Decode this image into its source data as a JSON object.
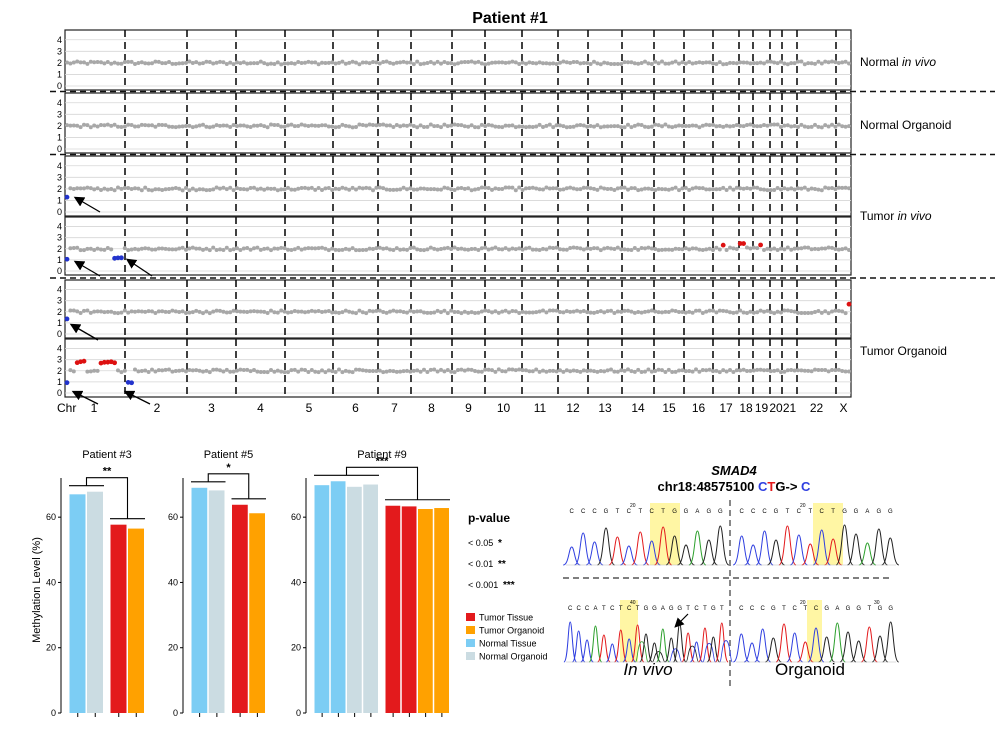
{
  "cnv": {
    "title": "Patient #1",
    "x_axis_label": "Chr",
    "chromosomes": [
      "1",
      "2",
      "3",
      "4",
      "5",
      "6",
      "7",
      "8",
      "9",
      "10",
      "11",
      "12",
      "13",
      "14",
      "15",
      "16",
      "17",
      "18",
      "19",
      "20",
      "21",
      "22",
      "X"
    ],
    "y_ticks": [
      0,
      1,
      2,
      3,
      4
    ],
    "sample_labels": [
      {
        "pre": "Normal ",
        "ital": "in vivo"
      },
      {
        "pre": "Normal Organoid",
        "ital": ""
      },
      {
        "pre": "Tumor ",
        "ital": "in vivo"
      },
      {
        "pre": "Tumor Organoid",
        "ital": ""
      }
    ],
    "baseline_copy_number": 2,
    "colors": {
      "neutral": "#a8a8a8",
      "loss": "#2233cc",
      "gain": "#dd1111"
    },
    "tracks": [
      {
        "events": []
      },
      {
        "events": []
      },
      {
        "events": [
          {
            "chr": "1",
            "from": 0,
            "to": 0.06,
            "cn": 1.3,
            "type": "loss"
          }
        ]
      },
      {
        "events": [
          {
            "chr": "1",
            "from": 0,
            "to": 0.07,
            "cn": 1.0,
            "type": "loss"
          },
          {
            "chr": "1",
            "from": 0.82,
            "to": 0.95,
            "cn": 1.2,
            "type": "loss"
          },
          {
            "chr": "17",
            "from": 0.3,
            "to": 0.4,
            "cn": 2.4,
            "type": "gain"
          },
          {
            "chr": "18",
            "from": 0.0,
            "to": 0.4,
            "cn": 2.4,
            "type": "gain"
          },
          {
            "chr": "19",
            "from": 0.3,
            "to": 0.6,
            "cn": 2.3,
            "type": "gain"
          }
        ]
      },
      {
        "events": [
          {
            "chr": "1",
            "from": 0,
            "to": 0.06,
            "cn": 1.4,
            "type": "loss"
          },
          {
            "chr": "X",
            "from": 0.75,
            "to": 1.0,
            "cn": 2.7,
            "type": "gain"
          }
        ]
      },
      {
        "events": [
          {
            "chr": "1",
            "from": 0,
            "to": 0.07,
            "cn": 0.9,
            "type": "loss"
          },
          {
            "chr": "1",
            "from": 0.2,
            "to": 0.35,
            "cn": 2.8,
            "type": "gain"
          },
          {
            "chr": "1",
            "from": 0.55,
            "to": 0.85,
            "cn": 2.75,
            "type": "gain"
          },
          {
            "chr": "2",
            "from": 0.0,
            "to": 0.15,
            "cn": 0.9,
            "type": "loss"
          }
        ]
      }
    ]
  },
  "methylation": {
    "ylabel": "Methylation Level (%)",
    "yticks": [
      0,
      20,
      40,
      60
    ],
    "ylim": [
      0,
      72
    ],
    "patients": [
      {
        "title": "Patient #3",
        "significance": "**",
        "normal": [
          67,
          67.8
        ],
        "tumor": [
          57.7,
          56.5
        ]
      },
      {
        "title": "Patient #5",
        "significance": "*",
        "normal": [
          69,
          68.2
        ],
        "tumor": [
          63.8,
          61.2
        ]
      },
      {
        "title": "Patient #9",
        "significance": "***",
        "normal": [
          69.8,
          71,
          69.3,
          70
        ],
        "tumor": [
          63.5,
          63.3,
          62.5,
          62.8
        ]
      }
    ],
    "pvalue": {
      "title": "p-value",
      "rows": [
        {
          "label": "< 0.05",
          "stars": "*"
        },
        {
          "label": "< 0.01",
          "stars": "**"
        },
        {
          "label": "< 0.001",
          "stars": "***"
        }
      ]
    },
    "legend": [
      {
        "label": "Tumor Tissue",
        "color": "#e31a1c"
      },
      {
        "label": "Tumor Organoid",
        "color": "#ffa100"
      },
      {
        "label": "Normal Tissue",
        "color": "#7ccdf4"
      },
      {
        "label": "Normal Organoid",
        "color": "#cbdce2"
      }
    ]
  },
  "chart_data": [
    {
      "type": "scatter",
      "title": "Patient #1",
      "xlabel": "Chr",
      "categories": [
        "1",
        "2",
        "3",
        "4",
        "5",
        "6",
        "7",
        "8",
        "9",
        "10",
        "11",
        "12",
        "13",
        "14",
        "15",
        "16",
        "17",
        "18",
        "19",
        "20",
        "21",
        "22",
        "X"
      ],
      "ylim": [
        0,
        4.5
      ],
      "series": [
        {
          "name": "Normal in vivo",
          "values": [
            2,
            2,
            2,
            2,
            2,
            2,
            2,
            2,
            2,
            2,
            2,
            2,
            2,
            2,
            2,
            2,
            2,
            2,
            2,
            2,
            2,
            2,
            2
          ]
        },
        {
          "name": "Normal Organoid",
          "values": [
            2,
            2,
            2,
            2,
            2,
            2,
            2,
            2,
            2,
            2,
            2,
            2,
            2,
            2,
            2,
            2,
            2,
            2,
            2,
            2,
            2,
            2,
            2
          ]
        },
        {
          "name": "Tumor in vivo",
          "values": [
            1.2,
            2,
            2,
            2,
            2,
            2,
            2,
            2,
            2,
            2,
            2,
            2,
            2,
            2,
            2,
            2,
            2.4,
            2.4,
            2.3,
            2,
            2,
            2,
            2
          ]
        },
        {
          "name": "Tumor Organoid",
          "values": [
            0.9,
            0.9,
            2,
            2,
            2,
            2,
            2,
            2,
            2,
            2,
            2,
            2,
            2,
            2,
            2,
            2,
            2,
            2,
            2,
            2,
            2,
            2,
            2.7
          ]
        }
      ]
    },
    {
      "type": "bar",
      "title": "Patient #3",
      "ylabel": "Methylation Level (%)",
      "ylim": [
        0,
        72
      ],
      "categories": [
        "Normal Tissue",
        "Normal Organoid",
        "Tumor Tissue",
        "Tumor Organoid"
      ],
      "values": [
        67,
        67.8,
        57.7,
        56.5
      ]
    },
    {
      "type": "bar",
      "title": "Patient #5",
      "ylim": [
        0,
        72
      ],
      "categories": [
        "Normal Tissue",
        "Normal Organoid",
        "Tumor Tissue",
        "Tumor Organoid"
      ],
      "values": [
        69,
        68.2,
        63.8,
        61.2
      ]
    },
    {
      "type": "bar",
      "title": "Patient #9",
      "ylim": [
        0,
        72
      ],
      "categories": [
        "Normal Tissue",
        "Normal Tissue",
        "Normal Organoid",
        "Normal Organoid",
        "Tumor Tissue",
        "Tumor Tissue",
        "Tumor Organoid",
        "Tumor Organoid"
      ],
      "values": [
        69.8,
        71,
        69.3,
        70,
        63.5,
        63.3,
        62.5,
        62.8
      ]
    }
  ],
  "sanger": {
    "gene": "SMAD4",
    "position": "chr18:48575100 ",
    "ref_c": "C",
    "ref_t": "T",
    "ref_g": "G",
    "arrow": "-> ",
    "alt": "C",
    "label_invivo": "In vivo",
    "label_organoid": "Organoid",
    "base_colors": {
      "A": "#2ca02c",
      "C": "#2f3fe0",
      "G": "#222222",
      "T": "#e31a1c"
    },
    "seq_top_left": "CCCGTCTCTGGAGG",
    "seq_top_right": "CCCGTCTCTGGAGG",
    "seq_bottom_left": "CCCATCTCTGGAGGTCTGT",
    "seq_bottom_right": "CCCGTCTCGAGGTGG",
    "pos_top_left": "20",
    "pos_top_right": "20",
    "pos_bottom_left": "40",
    "pos_bottom_right": "20",
    "pos_bottom_right2": "30"
  }
}
